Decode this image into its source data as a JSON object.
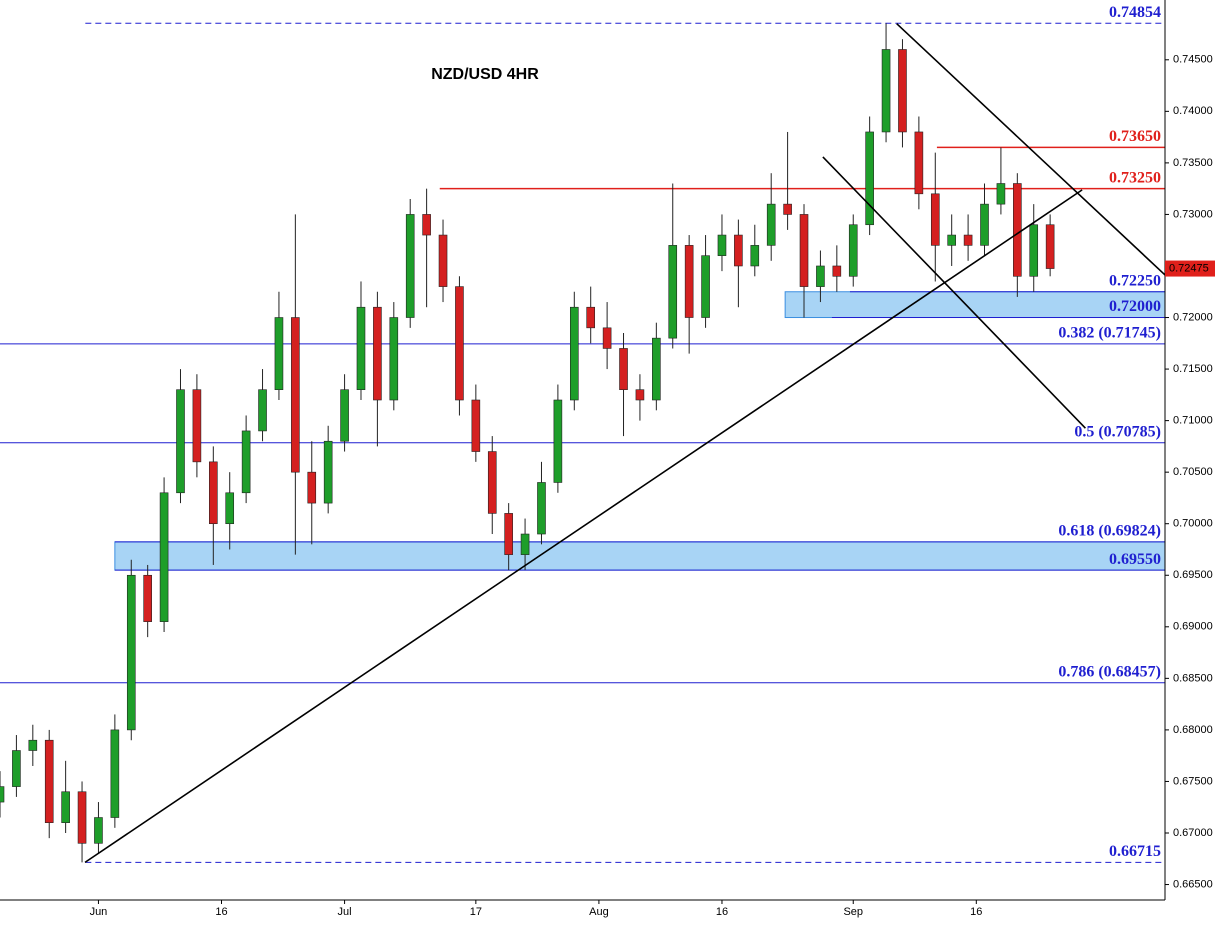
{
  "chart_data": {
    "type": "candlestick",
    "title": "NZD/USD 4HR",
    "up_color": "#1e9e2a",
    "down_color": "#d42020",
    "xlim": [
      -11,
      131
    ],
    "ylim": [
      0.6635,
      0.7508
    ],
    "xticks": [
      {
        "value": 1,
        "label": "Jun"
      },
      {
        "value": 16,
        "label": "16"
      },
      {
        "value": 31,
        "label": "Jul"
      },
      {
        "value": 47,
        "label": "17"
      },
      {
        "value": 62,
        "label": "Aug"
      },
      {
        "value": 77,
        "label": "16"
      },
      {
        "value": 93,
        "label": "Sep"
      },
      {
        "value": 108,
        "label": "16"
      }
    ],
    "yticks": [
      {
        "value": 0.665,
        "label": "0.66500"
      },
      {
        "value": 0.67,
        "label": "0.67000"
      },
      {
        "value": 0.675,
        "label": "0.67500"
      },
      {
        "value": 0.68,
        "label": "0.68000"
      },
      {
        "value": 0.685,
        "label": "0.68500"
      },
      {
        "value": 0.69,
        "label": "0.69000"
      },
      {
        "value": 0.695,
        "label": "0.69500"
      },
      {
        "value": 0.7,
        "label": "0.70000"
      },
      {
        "value": 0.705,
        "label": "0.70500"
      },
      {
        "value": 0.71,
        "label": "0.71000"
      },
      {
        "value": 0.715,
        "label": "0.71500"
      },
      {
        "value": 0.72,
        "label": "0.72000"
      },
      {
        "value": 0.725,
        "label": "0.72500"
      },
      {
        "value": 0.73,
        "label": "0.73000"
      },
      {
        "value": 0.735,
        "label": "0.73500"
      },
      {
        "value": 0.74,
        "label": "0.74000"
      },
      {
        "value": 0.745,
        "label": "0.74500"
      }
    ],
    "x": [
      -11,
      -9,
      -7,
      -5,
      -3,
      -1,
      1,
      3,
      5,
      7,
      9,
      11,
      13,
      15,
      17,
      19,
      21,
      23,
      25,
      27,
      29,
      31,
      33,
      35,
      37,
      39,
      41,
      43,
      45,
      47,
      49,
      51,
      53,
      55,
      57,
      59,
      61,
      63,
      65,
      67,
      69,
      71,
      73,
      75,
      77,
      79,
      81,
      83,
      85,
      87,
      89,
      91,
      93,
      95,
      97,
      99,
      101,
      103,
      105,
      107,
      109,
      111,
      113,
      115,
      117
    ],
    "open": [
      0.673,
      0.6745,
      0.678,
      0.679,
      0.671,
      0.674,
      0.669,
      0.6715,
      0.68,
      0.695,
      0.6905,
      0.703,
      0.713,
      0.706,
      0.7,
      0.703,
      0.709,
      0.713,
      0.72,
      0.705,
      0.702,
      0.708,
      0.713,
      0.721,
      0.712,
      0.72,
      0.73,
      0.728,
      0.723,
      0.712,
      0.707,
      0.701,
      0.697,
      0.699,
      0.704,
      0.712,
      0.721,
      0.719,
      0.717,
      0.713,
      0.712,
      0.718,
      0.727,
      0.72,
      0.726,
      0.728,
      0.725,
      0.727,
      0.731,
      0.73,
      0.723,
      0.725,
      0.724,
      0.729,
      0.738,
      0.746,
      0.738,
      0.732,
      0.727,
      0.728,
      0.727,
      0.731,
      0.733,
      0.724,
      0.729
    ],
    "high": [
      0.676,
      0.6795,
      0.6805,
      0.68,
      0.677,
      0.675,
      0.673,
      0.6815,
      0.6965,
      0.696,
      0.7045,
      0.715,
      0.7145,
      0.7075,
      0.705,
      0.7105,
      0.715,
      0.7225,
      0.73,
      0.708,
      0.7095,
      0.7145,
      0.7235,
      0.7225,
      0.7215,
      0.7315,
      0.7325,
      0.7295,
      0.724,
      0.7135,
      0.7085,
      0.702,
      0.7005,
      0.706,
      0.7135,
      0.7225,
      0.723,
      0.7215,
      0.7185,
      0.7145,
      0.7195,
      0.733,
      0.728,
      0.728,
      0.73,
      0.7295,
      0.729,
      0.734,
      0.738,
      0.731,
      0.7265,
      0.727,
      0.73,
      0.7395,
      0.74854,
      0.747,
      0.7395,
      0.736,
      0.73,
      0.73,
      0.733,
      0.7365,
      0.734,
      0.731,
      0.73
    ],
    "low": [
      0.6715,
      0.6735,
      0.6765,
      0.6695,
      0.67,
      0.66715,
      0.668,
      0.6705,
      0.679,
      0.689,
      0.6895,
      0.702,
      0.7045,
      0.696,
      0.6975,
      0.702,
      0.708,
      0.712,
      0.697,
      0.698,
      0.701,
      0.707,
      0.712,
      0.7075,
      0.711,
      0.719,
      0.721,
      0.7215,
      0.7105,
      0.706,
      0.699,
      0.6955,
      0.6955,
      0.698,
      0.703,
      0.711,
      0.7175,
      0.715,
      0.7085,
      0.71,
      0.711,
      0.717,
      0.7165,
      0.719,
      0.7245,
      0.721,
      0.724,
      0.7255,
      0.7285,
      0.72,
      0.7215,
      0.7225,
      0.723,
      0.728,
      0.737,
      0.7365,
      0.7305,
      0.7235,
      0.725,
      0.7255,
      0.726,
      0.73,
      0.722,
      0.7225,
      0.724
    ],
    "close": [
      0.6745,
      0.678,
      0.679,
      0.671,
      0.674,
      0.669,
      0.6715,
      0.68,
      0.695,
      0.6905,
      0.703,
      0.713,
      0.706,
      0.7,
      0.703,
      0.709,
      0.713,
      0.72,
      0.705,
      0.702,
      0.708,
      0.713,
      0.721,
      0.712,
      0.72,
      0.73,
      0.728,
      0.723,
      0.712,
      0.707,
      0.701,
      0.697,
      0.699,
      0.704,
      0.712,
      0.721,
      0.719,
      0.717,
      0.713,
      0.712,
      0.718,
      0.727,
      0.72,
      0.726,
      0.728,
      0.725,
      0.727,
      0.731,
      0.73,
      0.723,
      0.725,
      0.724,
      0.729,
      0.738,
      0.746,
      0.738,
      0.732,
      0.727,
      0.728,
      0.727,
      0.731,
      0.733,
      0.724,
      0.729,
      0.72475
    ],
    "last_price": {
      "value": 0.72475,
      "label": "0.72475",
      "color": "#e0201b"
    },
    "levels": [
      {
        "value": 0.74854,
        "label": "0.74854",
        "from": -0.6,
        "color": "#1f1fd0",
        "dashed": true
      },
      {
        "value": 0.7365,
        "label": "0.73650",
        "from": 103.2,
        "color": "#e0201b",
        "dashed": false
      },
      {
        "value": 0.7325,
        "label": "0.73250",
        "from": 42.6,
        "color": "#e0201b",
        "dashed": false
      },
      {
        "value": 0.7225,
        "label": "0.72250",
        "from": 92.6,
        "color": "#1f1fd0",
        "dashed": false
      },
      {
        "value": 0.72,
        "label": "0.72000",
        "from": 90.4,
        "color": "#1f1fd0",
        "dashed": false
      },
      {
        "value": 0.71745,
        "label": "0.382 (0.71745)",
        "from": -11,
        "color": "#1f1fd0",
        "dashed": false
      },
      {
        "value": 0.70785,
        "label": "0.5 (0.70785)",
        "from": -11,
        "color": "#1f1fd0",
        "dashed": false
      },
      {
        "value": 0.69824,
        "label": "0.618 (0.69824)",
        "from": 3.0,
        "color": "#1f1fd0",
        "dashed": false
      },
      {
        "value": 0.6955,
        "label": "0.69550",
        "from": 3.0,
        "color": "#1f1fd0",
        "dashed": false
      },
      {
        "value": 0.68457,
        "label": "0.786 (0.68457)",
        "from": -11,
        "color": "#1f1fd0",
        "dashed": false
      },
      {
        "value": 0.66715,
        "label": "0.66715",
        "from": -0.6,
        "color": "#1f1fd0",
        "dashed": true
      }
    ],
    "zones": [
      {
        "from": 84.7,
        "low": 0.72,
        "high": 0.7225,
        "color": "#a8d4f5"
      },
      {
        "from": 3.0,
        "low": 0.6955,
        "high": 0.69824,
        "color": "#a8d4f5"
      }
    ],
    "trendlines": [
      {
        "x": [
          -0.64,
          120.9
        ],
        "y": [
          0.66715,
          0.73238
        ]
      },
      {
        "x": [
          98.3,
          131
        ],
        "y": [
          0.7485,
          0.72413
        ]
      },
      {
        "x": [
          89.3,
          121.3
        ],
        "y": [
          0.73558,
          0.70927
        ]
      }
    ]
  }
}
